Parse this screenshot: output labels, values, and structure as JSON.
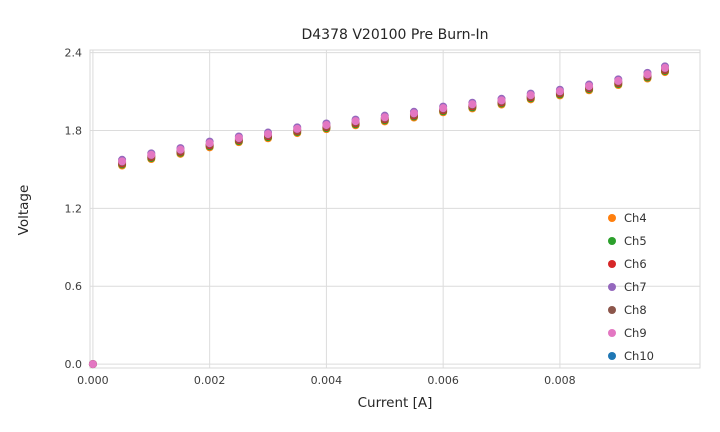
{
  "chart_data": {
    "type": "scatter",
    "title": "D4378 V20100 Pre Burn-In",
    "xlabel": "Current [A]",
    "ylabel": "Voltage",
    "grid": true,
    "grid_color": "#dcdcdc",
    "border_color": "#d9d9d9",
    "legend_position": "lower right",
    "xlim": [
      -5e-05,
      0.0104
    ],
    "ylim": [
      -0.03,
      2.42
    ],
    "xticks": {
      "values": [
        0.0,
        0.002,
        0.004,
        0.006,
        0.008
      ],
      "labels": [
        "0.000",
        "0.002",
        "0.004",
        "0.006",
        "0.008"
      ]
    },
    "yticks": {
      "values": [
        0.0,
        0.6,
        1.2,
        1.8,
        2.4
      ],
      "labels": [
        "0.0",
        "0.6",
        "1.2",
        "1.8",
        "2.4"
      ]
    },
    "x": [
      0.0,
      0.0005,
      0.001,
      0.0015,
      0.002,
      0.0025,
      0.003,
      0.0035,
      0.004,
      0.0045,
      0.005,
      0.0055,
      0.006,
      0.0065,
      0.007,
      0.0075,
      0.008,
      0.0085,
      0.009,
      0.0095,
      0.0098
    ],
    "series": [
      {
        "name": "Ch4",
        "color": "#ff7f0e",
        "values": [
          0,
          1.53,
          1.58,
          1.62,
          1.67,
          1.71,
          1.74,
          1.78,
          1.81,
          1.84,
          1.87,
          1.9,
          1.94,
          1.97,
          2.0,
          2.04,
          2.07,
          2.11,
          2.15,
          2.2,
          2.25
        ]
      },
      {
        "name": "Ch5",
        "color": "#2ca02c",
        "values": [
          0,
          1.538,
          1.588,
          1.628,
          1.678,
          1.718,
          1.748,
          1.788,
          1.818,
          1.848,
          1.878,
          1.908,
          1.948,
          1.978,
          2.008,
          2.048,
          2.078,
          2.118,
          2.158,
          2.208,
          2.258
        ]
      },
      {
        "name": "Ch6",
        "color": "#d62728",
        "values": [
          0,
          1.546,
          1.596,
          1.636,
          1.686,
          1.726,
          1.756,
          1.796,
          1.826,
          1.856,
          1.886,
          1.916,
          1.956,
          1.986,
          2.016,
          2.056,
          2.086,
          2.126,
          2.166,
          2.216,
          2.266
        ]
      },
      {
        "name": "Ch7",
        "color": "#9467bd",
        "values": [
          0,
          1.574,
          1.624,
          1.664,
          1.714,
          1.754,
          1.784,
          1.824,
          1.854,
          1.884,
          1.914,
          1.944,
          1.984,
          2.014,
          2.044,
          2.084,
          2.114,
          2.154,
          2.194,
          2.244,
          2.294
        ]
      },
      {
        "name": "Ch8",
        "color": "#8c564b",
        "values": [
          0,
          1.554,
          1.604,
          1.644,
          1.694,
          1.734,
          1.764,
          1.804,
          1.834,
          1.864,
          1.894,
          1.924,
          1.964,
          1.994,
          2.024,
          2.064,
          2.094,
          2.134,
          2.174,
          2.224,
          2.274
        ]
      },
      {
        "name": "Ch9",
        "color": "#e377c2",
        "values": [
          0,
          1.562,
          1.612,
          1.652,
          1.702,
          1.742,
          1.772,
          1.812,
          1.842,
          1.872,
          1.902,
          1.932,
          1.972,
          2.002,
          2.032,
          2.072,
          2.102,
          2.142,
          2.182,
          2.232,
          2.282
        ]
      },
      {
        "name": "Ch10",
        "color": "#1f77b4",
        "values": [
          null,
          null,
          null,
          null,
          null,
          null,
          null,
          null,
          null,
          null,
          null,
          null,
          null,
          null,
          null,
          null,
          null,
          null,
          null,
          null,
          null
        ]
      }
    ]
  }
}
